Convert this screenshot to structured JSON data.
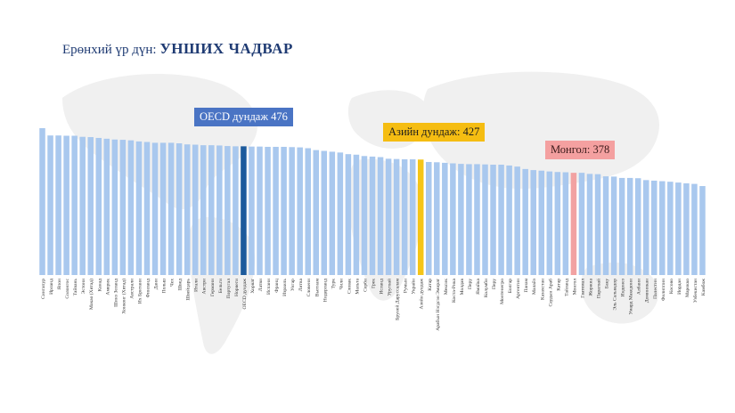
{
  "title": {
    "prefix": "Ерөнхий үр дүн: ",
    "main": "УНШИХ ЧАДВАР"
  },
  "annotations": {
    "oecd": "OECD дундаж 476",
    "asia": "Азийн дундаж: 427",
    "mongolia": "Монгол: 378"
  },
  "colors": {
    "default_bar": "#a9c8ee",
    "oecd_bar": "#1c5a9c",
    "asia_bar": "#f5c518",
    "mongolia_bar": "#f2a2a2",
    "oecd_label_bg": "#4a74c4",
    "asia_label_bg": "#f5bd12",
    "mongolia_label_bg": "#f4a0a0",
    "title": "#1f3b73"
  },
  "chart_data": {
    "type": "bar",
    "title": "Ерөнхий үр дүн: УНШИХ ЧАДВАР",
    "xlabel": "",
    "ylabel": "",
    "ylim": [
      0,
      560
    ],
    "grid": false,
    "legend": "none",
    "categories": [
      "Сингапур",
      "Ирланд",
      "Япон",
      "Солонгос",
      "Тайвань",
      "Эстони",
      "Макао (Хятад)",
      "Канад",
      "Америк",
      "Шинэ Зеланд",
      "Хонконг (Хятад)",
      "Австрали",
      "Их Британи",
      "Финланд",
      "Дани",
      "Польш",
      "Чех",
      "Швед",
      "Швейцарь",
      "Итали",
      "Австри",
      "Германи",
      "Бельги",
      "Португал",
      "Норвеги",
      "OECD дундаж",
      "Хорват",
      "Латви",
      "Испани",
      "Франц",
      "Израиль",
      "Унгар",
      "Литва",
      "Словени",
      "Вьетнам",
      "Нидерланд",
      "Турк",
      "Чили",
      "Словак",
      "Мальта",
      "Серби",
      "Грек",
      "Исланд",
      "Уругвай",
      "Бруней Даруссалам",
      "Румын",
      "Украйн",
      "Азийн дундаж",
      "Катар",
      "Арабын Нэгдсэн Эмират",
      "Мексик",
      "Коста-Рика",
      "Молдав",
      "Перу",
      "Ямайка",
      "Колумби",
      "Перу",
      "Монтенегро",
      "Болгар",
      "Аргентин",
      "Панам",
      "Малайз",
      "Казахстан",
      "Саудын Араб",
      "Катар",
      "Тайланд",
      "Монгол",
      "Гватемал",
      "Жоржиа",
      "Парагвай",
      "Баку",
      "Эль Сальвадор",
      "Индонез",
      "Умард Македони",
      "Албани",
      "Доминикан",
      "Палестин",
      "Филиппин",
      "Косово",
      "Иордан",
      "Марокко",
      "Узбекистан",
      "Камбож"
    ],
    "values": [
      543,
      516,
      516,
      515,
      515,
      511,
      510,
      507,
      504,
      501,
      500,
      498,
      494,
      492,
      489,
      489,
      489,
      487,
      483,
      482,
      480,
      480,
      479,
      477,
      476,
      476,
      475,
      475,
      474,
      474,
      474,
      473,
      472,
      469,
      462,
      459,
      456,
      453,
      447,
      445,
      440,
      438,
      436,
      430,
      429,
      428,
      428,
      427,
      418,
      417,
      415,
      413,
      411,
      410,
      410,
      409,
      408,
      408,
      405,
      401,
      392,
      388,
      386,
      383,
      381,
      380,
      378,
      378,
      374,
      373,
      365,
      364,
      359,
      359,
      358,
      351,
      349,
      347,
      345,
      342,
      339,
      337,
      329
    ],
    "highlights": {
      "oecd_index": 25,
      "asia_index": 47,
      "mongolia_index": 66
    }
  }
}
